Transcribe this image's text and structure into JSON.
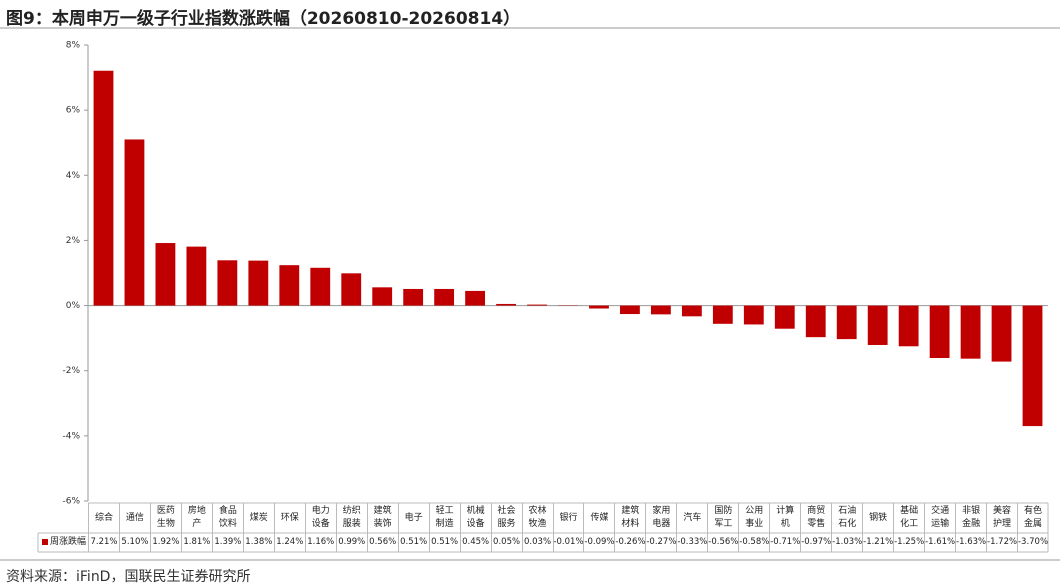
{
  "chart_data": {
    "type": "bar",
    "title": "图9：本周申万一级子行业指数涨跌幅（20260810-20260814）",
    "source": "资料来源：iFinD，国联民生证券研究所",
    "categories": [
      "综合",
      "通信",
      "医药生物",
      "房地产",
      "食品饮料",
      "煤炭",
      "环保",
      "电力设备",
      "纺织服装",
      "建筑装饰",
      "电子",
      "轻工制造",
      "机械设备",
      "社会服务",
      "农林牧渔",
      "银行",
      "传媒",
      "建筑材料",
      "家用电器",
      "汽车",
      "国防军工",
      "公用事业",
      "计算机",
      "商贸零售",
      "石油石化",
      "钢铁",
      "基础化工",
      "交通运输",
      "非银金融",
      "美容护理",
      "有色金属"
    ],
    "series": [
      {
        "name": "周涨跌幅",
        "color": "#c00000",
        "values": [
          7.21,
          5.1,
          1.92,
          1.81,
          1.39,
          1.38,
          1.24,
          1.16,
          0.99,
          0.56,
          0.51,
          0.51,
          0.45,
          0.05,
          0.03,
          -0.01,
          -0.09,
          -0.26,
          -0.27,
          -0.33,
          -0.56,
          -0.58,
          -0.71,
          -0.97,
          -1.03,
          -1.21,
          -1.25,
          -1.61,
          -1.63,
          -1.72,
          -3.7
        ],
        "value_labels": [
          "7.21%",
          "5.10%",
          "1.92%",
          "1.81%",
          "1.39%",
          "1.38%",
          "1.24%",
          "1.16%",
          "0.99%",
          "0.56%",
          "0.51%",
          "0.51%",
          "0.45%",
          "0.05%",
          "0.03%",
          "-0.01%",
          "-0.09%",
          "-0.26%",
          "-0.27%",
          "-0.33%",
          "-0.56%",
          "-0.58%",
          "-0.71%",
          "-0.97%",
          "-1.03%",
          "-1.21%",
          "-1.25%",
          "-1.61%",
          "-1.63%",
          "-1.72%",
          "-3.70%"
        ]
      }
    ],
    "ylim": [
      -6,
      8
    ],
    "yticks": [
      {
        "value": -6,
        "label": "-6%"
      },
      {
        "value": -4,
        "label": "-4%"
      },
      {
        "value": -2,
        "label": "-2%"
      },
      {
        "value": 0,
        "label": "0%"
      },
      {
        "value": 2,
        "label": "2%"
      },
      {
        "value": 4,
        "label": "4%"
      },
      {
        "value": 6,
        "label": "6%"
      },
      {
        "value": 8,
        "label": "8%"
      }
    ]
  }
}
